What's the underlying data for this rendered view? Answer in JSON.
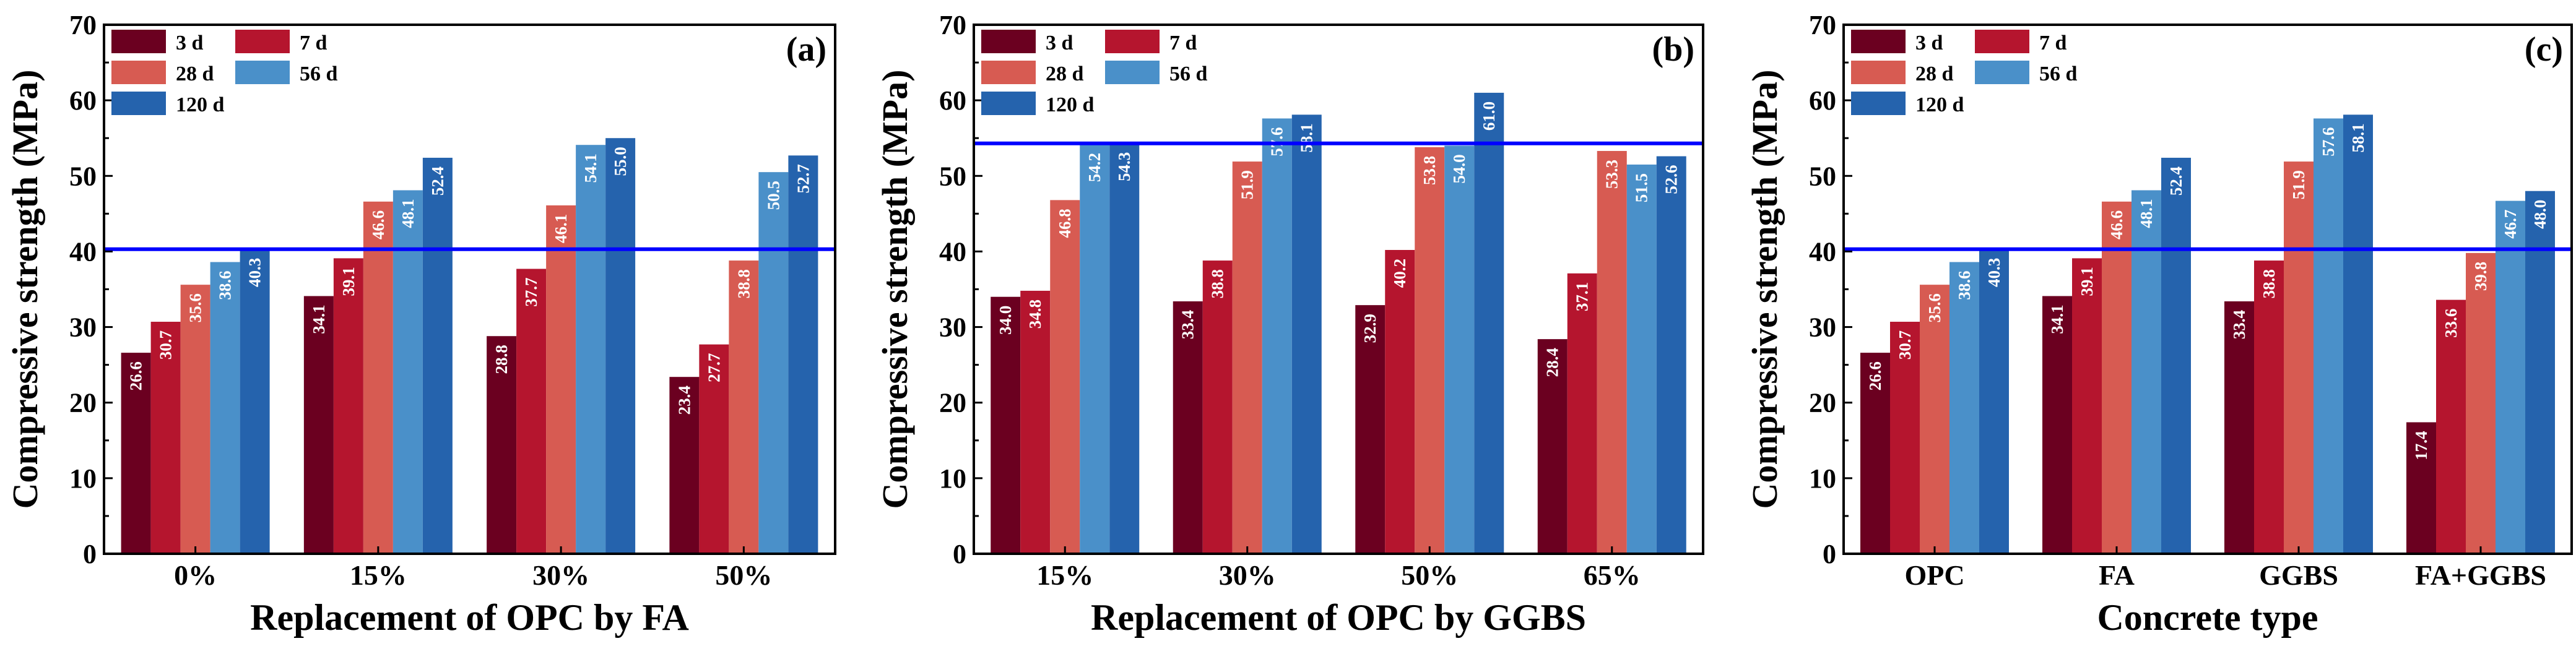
{
  "colors": {
    "3 d": "#6b0020",
    "7 d": "#b5152e",
    "28 d": "#d75b52",
    "56 d": "#4a90c9",
    "120 d": "#2563ad",
    "reference_line": "#0000ff"
  },
  "chart_data": [
    {
      "type": "bar",
      "panel_label": "(a)",
      "xlabel": "Replacement of OPC by FA",
      "ylabel": "Compressive strength (MPa)",
      "ylim": [
        0,
        70
      ],
      "yticks": [
        0,
        10,
        20,
        30,
        40,
        50,
        60,
        70
      ],
      "categories": [
        "0%",
        "15%",
        "30%",
        "50%"
      ],
      "series": [
        {
          "name": "3 d",
          "values": [
            26.6,
            34.1,
            28.8,
            23.4
          ]
        },
        {
          "name": "7 d",
          "values": [
            30.7,
            39.1,
            37.7,
            27.7
          ]
        },
        {
          "name": "28 d",
          "values": [
            35.6,
            46.6,
            46.1,
            38.8
          ]
        },
        {
          "name": "56 d",
          "values": [
            38.6,
            48.1,
            54.1,
            50.5
          ]
        },
        {
          "name": "120 d",
          "values": [
            40.3,
            52.4,
            55.0,
            52.7
          ]
        }
      ],
      "reference_line": 40.3,
      "legend_position": "top-left",
      "grid": false
    },
    {
      "type": "bar",
      "panel_label": "(b)",
      "xlabel": "Replacement of OPC by GGBS",
      "ylabel": "Compressive strength (MPa)",
      "ylim": [
        0,
        70
      ],
      "yticks": [
        0,
        10,
        20,
        30,
        40,
        50,
        60,
        70
      ],
      "categories": [
        "15%",
        "30%",
        "50%",
        "65%"
      ],
      "series": [
        {
          "name": "3 d",
          "values": [
            34.0,
            33.4,
            32.9,
            28.4
          ]
        },
        {
          "name": "7 d",
          "values": [
            34.8,
            38.8,
            40.2,
            37.1
          ]
        },
        {
          "name": "28 d",
          "values": [
            46.8,
            51.9,
            53.8,
            53.3
          ]
        },
        {
          "name": "56 d",
          "values": [
            54.2,
            57.6,
            54.0,
            51.5
          ]
        },
        {
          "name": "120 d",
          "values": [
            54.3,
            58.1,
            61.0,
            52.6
          ]
        }
      ],
      "reference_line": 54.3,
      "legend_position": "top-left",
      "grid": false
    },
    {
      "type": "bar",
      "panel_label": "(c)",
      "xlabel": "Concrete type",
      "ylabel": "Compressive strength (MPa)",
      "ylim": [
        0,
        70
      ],
      "yticks": [
        0,
        10,
        20,
        30,
        40,
        50,
        60,
        70
      ],
      "categories": [
        "OPC",
        "FA",
        "GGBS",
        "FA+GGBS"
      ],
      "series": [
        {
          "name": "3 d",
          "values": [
            26.6,
            34.1,
            33.4,
            17.4
          ]
        },
        {
          "name": "7 d",
          "values": [
            30.7,
            39.1,
            38.8,
            33.6
          ]
        },
        {
          "name": "28 d",
          "values": [
            35.6,
            46.6,
            51.9,
            39.8
          ]
        },
        {
          "name": "56 d",
          "values": [
            38.6,
            48.1,
            57.6,
            46.7
          ]
        },
        {
          "name": "120 d",
          "values": [
            40.3,
            52.4,
            58.1,
            48.0
          ]
        }
      ],
      "reference_line": 40.3,
      "legend_position": "top-left",
      "grid": false
    }
  ]
}
